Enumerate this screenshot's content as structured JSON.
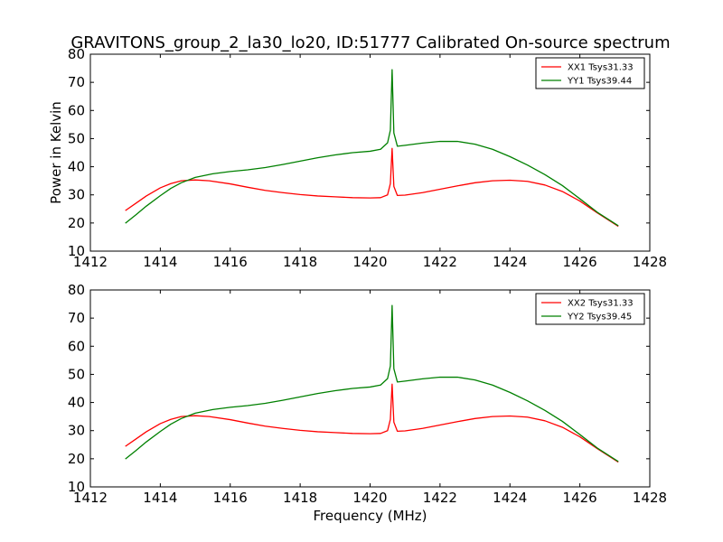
{
  "figure": {
    "title": "GRAVITONS_group_2_la30_lo20, ID:51777 Calibrated On-source spectrum"
  },
  "colors": {
    "xx": "#ff0000",
    "yy": "#008000"
  },
  "chart_data": [
    {
      "type": "line",
      "title": "GRAVITONS_group_2_la30_lo20, ID:51777 Calibrated On-source spectrum",
      "xlabel": "",
      "ylabel": "Power in Kelvin",
      "xlim": [
        1412,
        1428
      ],
      "ylim": [
        10,
        80
      ],
      "xticks": [
        1412,
        1414,
        1416,
        1418,
        1420,
        1422,
        1424,
        1426,
        1428
      ],
      "yticks": [
        10,
        20,
        30,
        40,
        50,
        60,
        70,
        80
      ],
      "grid": false,
      "legend": "top-right",
      "series": [
        {
          "name": "XX1 Tsys31.33",
          "color": "#ff0000",
          "points": [
            [
              1413.0,
              24.4
            ],
            [
              1413.3,
              27.0
            ],
            [
              1413.6,
              29.6
            ],
            [
              1414.0,
              32.5
            ],
            [
              1414.3,
              34.0
            ],
            [
              1414.6,
              35.0
            ],
            [
              1415.0,
              35.3
            ],
            [
              1415.4,
              35.0
            ],
            [
              1416.0,
              33.9
            ],
            [
              1416.5,
              32.7
            ],
            [
              1417.0,
              31.6
            ],
            [
              1417.5,
              30.8
            ],
            [
              1418.0,
              30.1
            ],
            [
              1418.5,
              29.6
            ],
            [
              1419.0,
              29.3
            ],
            [
              1419.5,
              29.0
            ],
            [
              1420.0,
              28.9
            ],
            [
              1420.3,
              29.0
            ],
            [
              1420.5,
              30.0
            ],
            [
              1420.58,
              34.0
            ],
            [
              1420.63,
              46.5
            ],
            [
              1420.68,
              33.0
            ],
            [
              1420.78,
              29.8
            ],
            [
              1421.0,
              29.9
            ],
            [
              1421.5,
              30.8
            ],
            [
              1422.0,
              32.0
            ],
            [
              1422.5,
              33.2
            ],
            [
              1423.0,
              34.3
            ],
            [
              1423.5,
              35.0
            ],
            [
              1424.0,
              35.2
            ],
            [
              1424.5,
              34.8
            ],
            [
              1425.0,
              33.5
            ],
            [
              1425.5,
              31.2
            ],
            [
              1426.0,
              27.8
            ],
            [
              1426.5,
              23.6
            ],
            [
              1427.1,
              18.8
            ]
          ]
        },
        {
          "name": "YY1 Tsys39.44",
          "color": "#008000",
          "points": [
            [
              1413.0,
              19.9
            ],
            [
              1413.3,
              22.9
            ],
            [
              1413.6,
              26.0
            ],
            [
              1414.0,
              29.7
            ],
            [
              1414.3,
              32.3
            ],
            [
              1414.6,
              34.3
            ],
            [
              1415.0,
              36.2
            ],
            [
              1415.5,
              37.5
            ],
            [
              1416.0,
              38.3
            ],
            [
              1416.5,
              38.9
            ],
            [
              1417.0,
              39.7
            ],
            [
              1417.5,
              40.8
            ],
            [
              1418.0,
              42.0
            ],
            [
              1418.5,
              43.2
            ],
            [
              1419.0,
              44.2
            ],
            [
              1419.5,
              45.0
            ],
            [
              1420.0,
              45.5
            ],
            [
              1420.3,
              46.2
            ],
            [
              1420.5,
              48.5
            ],
            [
              1420.58,
              53.0
            ],
            [
              1420.63,
              74.5
            ],
            [
              1420.68,
              52.0
            ],
            [
              1420.78,
              47.3
            ],
            [
              1421.0,
              47.6
            ],
            [
              1421.5,
              48.4
            ],
            [
              1422.0,
              49.0
            ],
            [
              1422.5,
              49.0
            ],
            [
              1423.0,
              48.0
            ],
            [
              1423.5,
              46.2
            ],
            [
              1424.0,
              43.6
            ],
            [
              1424.5,
              40.6
            ],
            [
              1425.0,
              37.2
            ],
            [
              1425.5,
              33.3
            ],
            [
              1426.0,
              28.6
            ],
            [
              1426.5,
              23.8
            ],
            [
              1427.1,
              19.0
            ]
          ]
        }
      ]
    },
    {
      "type": "line",
      "title": "",
      "xlabel": "Frequency (MHz)",
      "ylabel": "",
      "xlim": [
        1412,
        1428
      ],
      "ylim": [
        10,
        80
      ],
      "xticks": [
        1412,
        1414,
        1416,
        1418,
        1420,
        1422,
        1424,
        1426,
        1428
      ],
      "yticks": [
        10,
        20,
        30,
        40,
        50,
        60,
        70,
        80
      ],
      "grid": false,
      "legend": "top-right",
      "series": [
        {
          "name": "XX2 Tsys31.33",
          "color": "#ff0000",
          "points": [
            [
              1413.0,
              24.4
            ],
            [
              1413.3,
              27.0
            ],
            [
              1413.6,
              29.6
            ],
            [
              1414.0,
              32.5
            ],
            [
              1414.3,
              34.0
            ],
            [
              1414.6,
              35.0
            ],
            [
              1415.0,
              35.3
            ],
            [
              1415.4,
              35.0
            ],
            [
              1416.0,
              33.9
            ],
            [
              1416.5,
              32.7
            ],
            [
              1417.0,
              31.6
            ],
            [
              1417.5,
              30.8
            ],
            [
              1418.0,
              30.1
            ],
            [
              1418.5,
              29.6
            ],
            [
              1419.0,
              29.3
            ],
            [
              1419.5,
              29.0
            ],
            [
              1420.0,
              28.9
            ],
            [
              1420.3,
              29.0
            ],
            [
              1420.5,
              30.0
            ],
            [
              1420.58,
              34.0
            ],
            [
              1420.63,
              46.5
            ],
            [
              1420.68,
              33.0
            ],
            [
              1420.78,
              29.8
            ],
            [
              1421.0,
              29.9
            ],
            [
              1421.5,
              30.8
            ],
            [
              1422.0,
              32.0
            ],
            [
              1422.5,
              33.2
            ],
            [
              1423.0,
              34.3
            ],
            [
              1423.5,
              35.0
            ],
            [
              1424.0,
              35.2
            ],
            [
              1424.5,
              34.8
            ],
            [
              1425.0,
              33.5
            ],
            [
              1425.5,
              31.2
            ],
            [
              1426.0,
              27.8
            ],
            [
              1426.5,
              23.6
            ],
            [
              1427.1,
              18.8
            ]
          ]
        },
        {
          "name": "YY2 Tsys39.45",
          "color": "#008000",
          "points": [
            [
              1413.0,
              19.9
            ],
            [
              1413.3,
              22.9
            ],
            [
              1413.6,
              26.0
            ],
            [
              1414.0,
              29.7
            ],
            [
              1414.3,
              32.3
            ],
            [
              1414.6,
              34.3
            ],
            [
              1415.0,
              36.2
            ],
            [
              1415.5,
              37.5
            ],
            [
              1416.0,
              38.3
            ],
            [
              1416.5,
              38.9
            ],
            [
              1417.0,
              39.7
            ],
            [
              1417.5,
              40.8
            ],
            [
              1418.0,
              42.0
            ],
            [
              1418.5,
              43.2
            ],
            [
              1419.0,
              44.2
            ],
            [
              1419.5,
              45.0
            ],
            [
              1420.0,
              45.5
            ],
            [
              1420.3,
              46.2
            ],
            [
              1420.5,
              48.5
            ],
            [
              1420.58,
              53.0
            ],
            [
              1420.63,
              74.5
            ],
            [
              1420.68,
              52.0
            ],
            [
              1420.78,
              47.3
            ],
            [
              1421.0,
              47.6
            ],
            [
              1421.5,
              48.4
            ],
            [
              1422.0,
              49.0
            ],
            [
              1422.5,
              49.0
            ],
            [
              1423.0,
              48.0
            ],
            [
              1423.5,
              46.2
            ],
            [
              1424.0,
              43.6
            ],
            [
              1424.5,
              40.6
            ],
            [
              1425.0,
              37.2
            ],
            [
              1425.5,
              33.3
            ],
            [
              1426.0,
              28.6
            ],
            [
              1426.5,
              23.8
            ],
            [
              1427.1,
              19.0
            ]
          ]
        }
      ]
    }
  ]
}
